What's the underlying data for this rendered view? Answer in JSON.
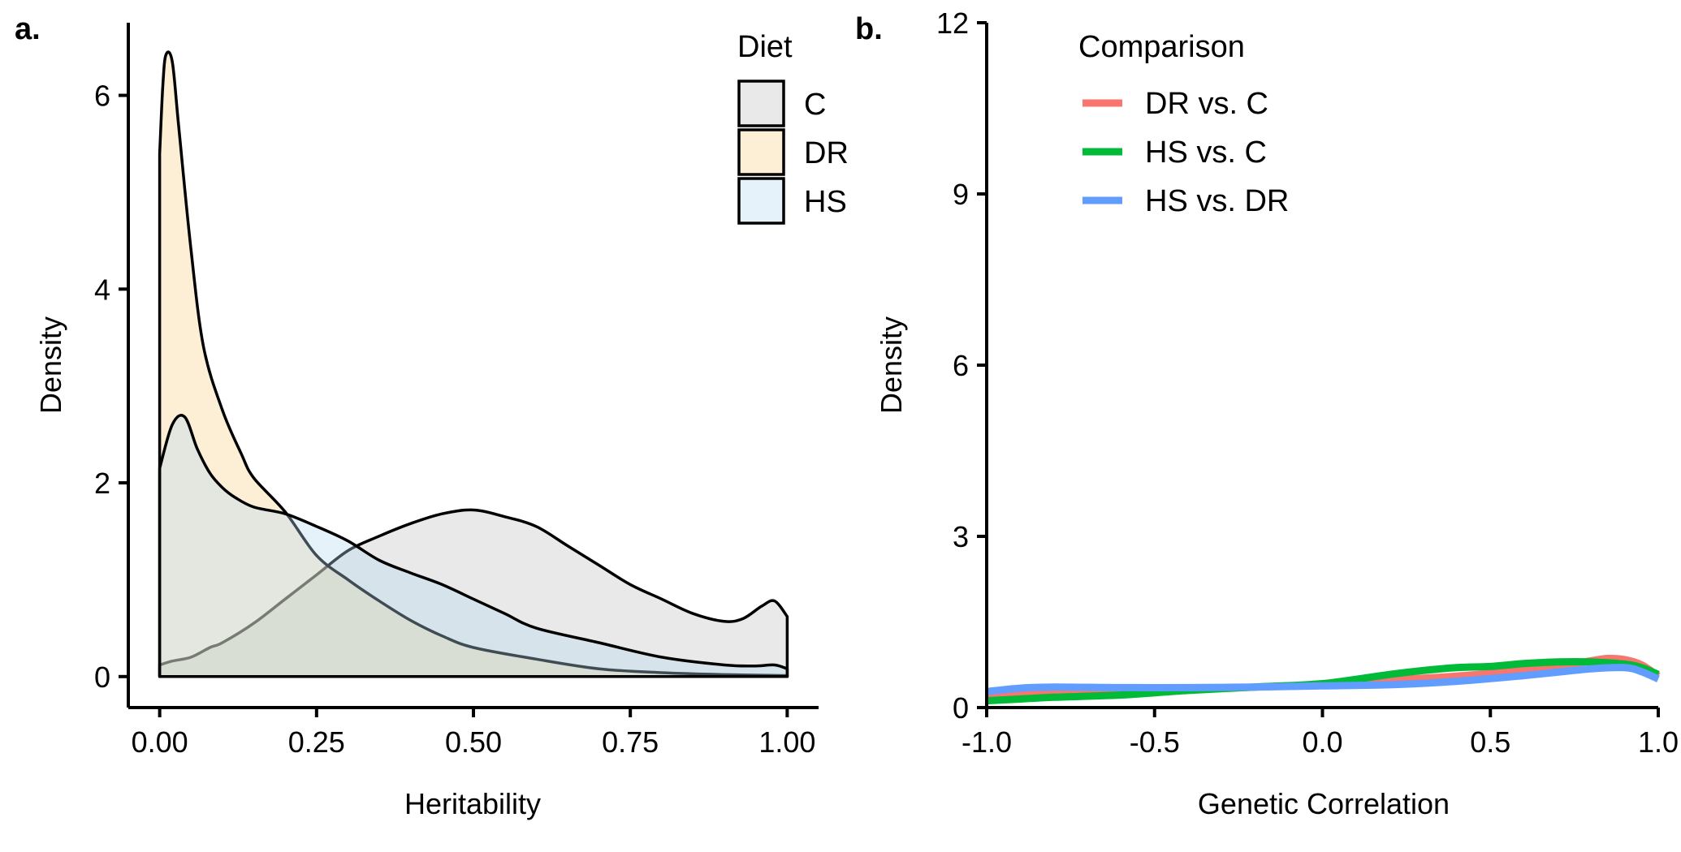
{
  "chart_data": [
    {
      "panel_label": "a.",
      "type": "area",
      "title": "",
      "xlabel": "Heritability",
      "ylabel": "Density",
      "xlim": [
        -0.05,
        1.05
      ],
      "ylim": [
        -0.32,
        6.75
      ],
      "xticks": [
        0.0,
        0.25,
        0.5,
        0.75,
        1.0
      ],
      "xtick_labels": [
        "0.00",
        "0.25",
        "0.50",
        "0.75",
        "1.00"
      ],
      "yticks": [
        0,
        2,
        4,
        6
      ],
      "ytick_labels": [
        "0",
        "2",
        "4",
        "6"
      ],
      "grid": false,
      "legend": {
        "title": "Diet",
        "placement": "top-right"
      },
      "series": [
        {
          "name": "C",
          "fill": "#bfbfbf",
          "x": [
            0.0,
            0.02,
            0.05,
            0.08,
            0.1,
            0.15,
            0.2,
            0.25,
            0.3,
            0.35,
            0.4,
            0.45,
            0.5,
            0.55,
            0.6,
            0.65,
            0.7,
            0.75,
            0.8,
            0.85,
            0.9,
            0.93,
            0.96,
            0.98,
            1.0
          ],
          "y": [
            0.12,
            0.16,
            0.2,
            0.3,
            0.35,
            0.55,
            0.8,
            1.05,
            1.3,
            1.45,
            1.58,
            1.68,
            1.72,
            1.65,
            1.55,
            1.35,
            1.15,
            0.95,
            0.8,
            0.65,
            0.57,
            0.6,
            0.73,
            0.78,
            0.62
          ]
        },
        {
          "name": "DR",
          "fill": "#f5d08a",
          "x": [
            0.0,
            0.005,
            0.01,
            0.02,
            0.03,
            0.05,
            0.07,
            0.1,
            0.13,
            0.15,
            0.2,
            0.25,
            0.3,
            0.35,
            0.4,
            0.45,
            0.5,
            0.6,
            0.7,
            0.8,
            0.9,
            1.0
          ],
          "y": [
            5.4,
            6.1,
            6.42,
            6.35,
            5.7,
            4.4,
            3.4,
            2.75,
            2.3,
            2.05,
            1.7,
            1.25,
            1.0,
            0.78,
            0.58,
            0.42,
            0.3,
            0.18,
            0.08,
            0.04,
            0.02,
            0.01
          ]
        },
        {
          "name": "HS",
          "fill": "#b5d9f0",
          "x": [
            0.0,
            0.02,
            0.04,
            0.06,
            0.08,
            0.1,
            0.12,
            0.15,
            0.2,
            0.25,
            0.3,
            0.35,
            0.4,
            0.45,
            0.5,
            0.55,
            0.6,
            0.7,
            0.8,
            0.9,
            0.95,
            0.98,
            1.0
          ],
          "y": [
            2.15,
            2.6,
            2.68,
            2.35,
            2.1,
            1.95,
            1.85,
            1.75,
            1.68,
            1.55,
            1.4,
            1.2,
            1.07,
            0.95,
            0.8,
            0.65,
            0.5,
            0.35,
            0.2,
            0.12,
            0.11,
            0.12,
            0.08
          ]
        }
      ]
    },
    {
      "panel_label": "b.",
      "type": "line",
      "title": "",
      "xlabel": "Genetic Correlation",
      "ylabel": "Density",
      "xlim": [
        -1.0,
        1.0
      ],
      "ylim": [
        0,
        12
      ],
      "xticks": [
        -1.0,
        -0.5,
        0.0,
        0.5,
        1.0
      ],
      "xtick_labels": [
        "-1.0",
        "-0.5",
        "0.0",
        "0.5",
        "1.0"
      ],
      "yticks": [
        0,
        3,
        6,
        9,
        12
      ],
      "ytick_labels": [
        "0",
        "3",
        "6",
        "9",
        "12"
      ],
      "grid": false,
      "legend": {
        "title": "Comparison",
        "placement": "top-left"
      },
      "series": [
        {
          "name": "DR vs. C",
          "color": "#f8766d",
          "x": [
            -1.0,
            -0.9,
            -0.8,
            -0.6,
            -0.4,
            -0.2,
            0.0,
            0.2,
            0.4,
            0.6,
            0.7,
            0.8,
            0.85,
            0.9,
            0.95,
            1.0
          ],
          "y": [
            0.2,
            0.24,
            0.26,
            0.28,
            0.32,
            0.36,
            0.4,
            0.48,
            0.55,
            0.65,
            0.72,
            0.82,
            0.86,
            0.84,
            0.75,
            0.55
          ]
        },
        {
          "name": "HS vs. C",
          "color": "#00ba38",
          "x": [
            -1.0,
            -0.9,
            -0.8,
            -0.6,
            -0.4,
            -0.2,
            0.0,
            0.2,
            0.3,
            0.4,
            0.5,
            0.6,
            0.7,
            0.8,
            0.9,
            0.95,
            1.0
          ],
          "y": [
            0.12,
            0.15,
            0.18,
            0.22,
            0.3,
            0.36,
            0.42,
            0.58,
            0.65,
            0.7,
            0.72,
            0.77,
            0.8,
            0.8,
            0.76,
            0.7,
            0.58
          ]
        },
        {
          "name": "HS vs. DR",
          "color": "#619cff",
          "x": [
            -1.0,
            -0.9,
            -0.8,
            -0.6,
            -0.4,
            -0.2,
            0.0,
            0.2,
            0.4,
            0.6,
            0.7,
            0.8,
            0.9,
            0.95,
            1.0
          ],
          "y": [
            0.28,
            0.34,
            0.36,
            0.35,
            0.35,
            0.36,
            0.38,
            0.4,
            0.46,
            0.56,
            0.62,
            0.68,
            0.7,
            0.63,
            0.5
          ]
        }
      ]
    }
  ]
}
